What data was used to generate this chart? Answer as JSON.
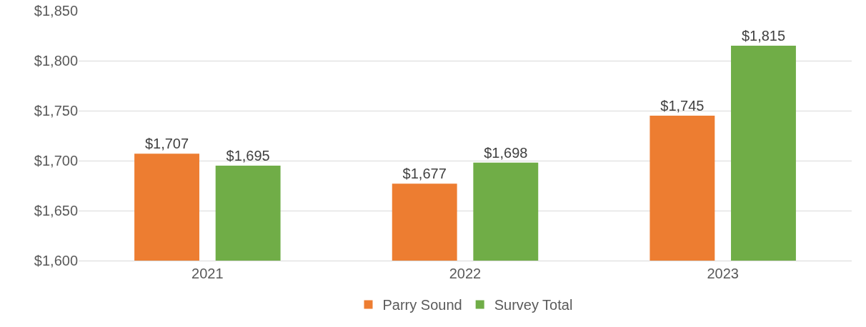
{
  "chart_data": {
    "type": "bar",
    "categories": [
      "2021",
      "2022",
      "2023"
    ],
    "series": [
      {
        "name": "Parry Sound",
        "color": "#ed7d31",
        "values": [
          1707,
          1677,
          1745
        ],
        "value_labels": [
          "$1,707",
          "$1,677",
          "$1,745"
        ]
      },
      {
        "name": "Survey Total",
        "color": "#70ad47",
        "values": [
          1695,
          1698,
          1815
        ],
        "value_labels": [
          "$1,695",
          "$1,698",
          "$1,815"
        ]
      }
    ],
    "ylim": [
      1600,
      1850
    ],
    "yticks": [
      {
        "value": 1600,
        "label": "$1,600"
      },
      {
        "value": 1650,
        "label": "$1,650"
      },
      {
        "value": 1700,
        "label": "$1,700"
      },
      {
        "value": 1750,
        "label": "$1,750"
      },
      {
        "value": 1800,
        "label": "$1,800"
      },
      {
        "value": 1850,
        "label": "$1,850"
      }
    ],
    "grid": "y",
    "legend": "bottom"
  }
}
